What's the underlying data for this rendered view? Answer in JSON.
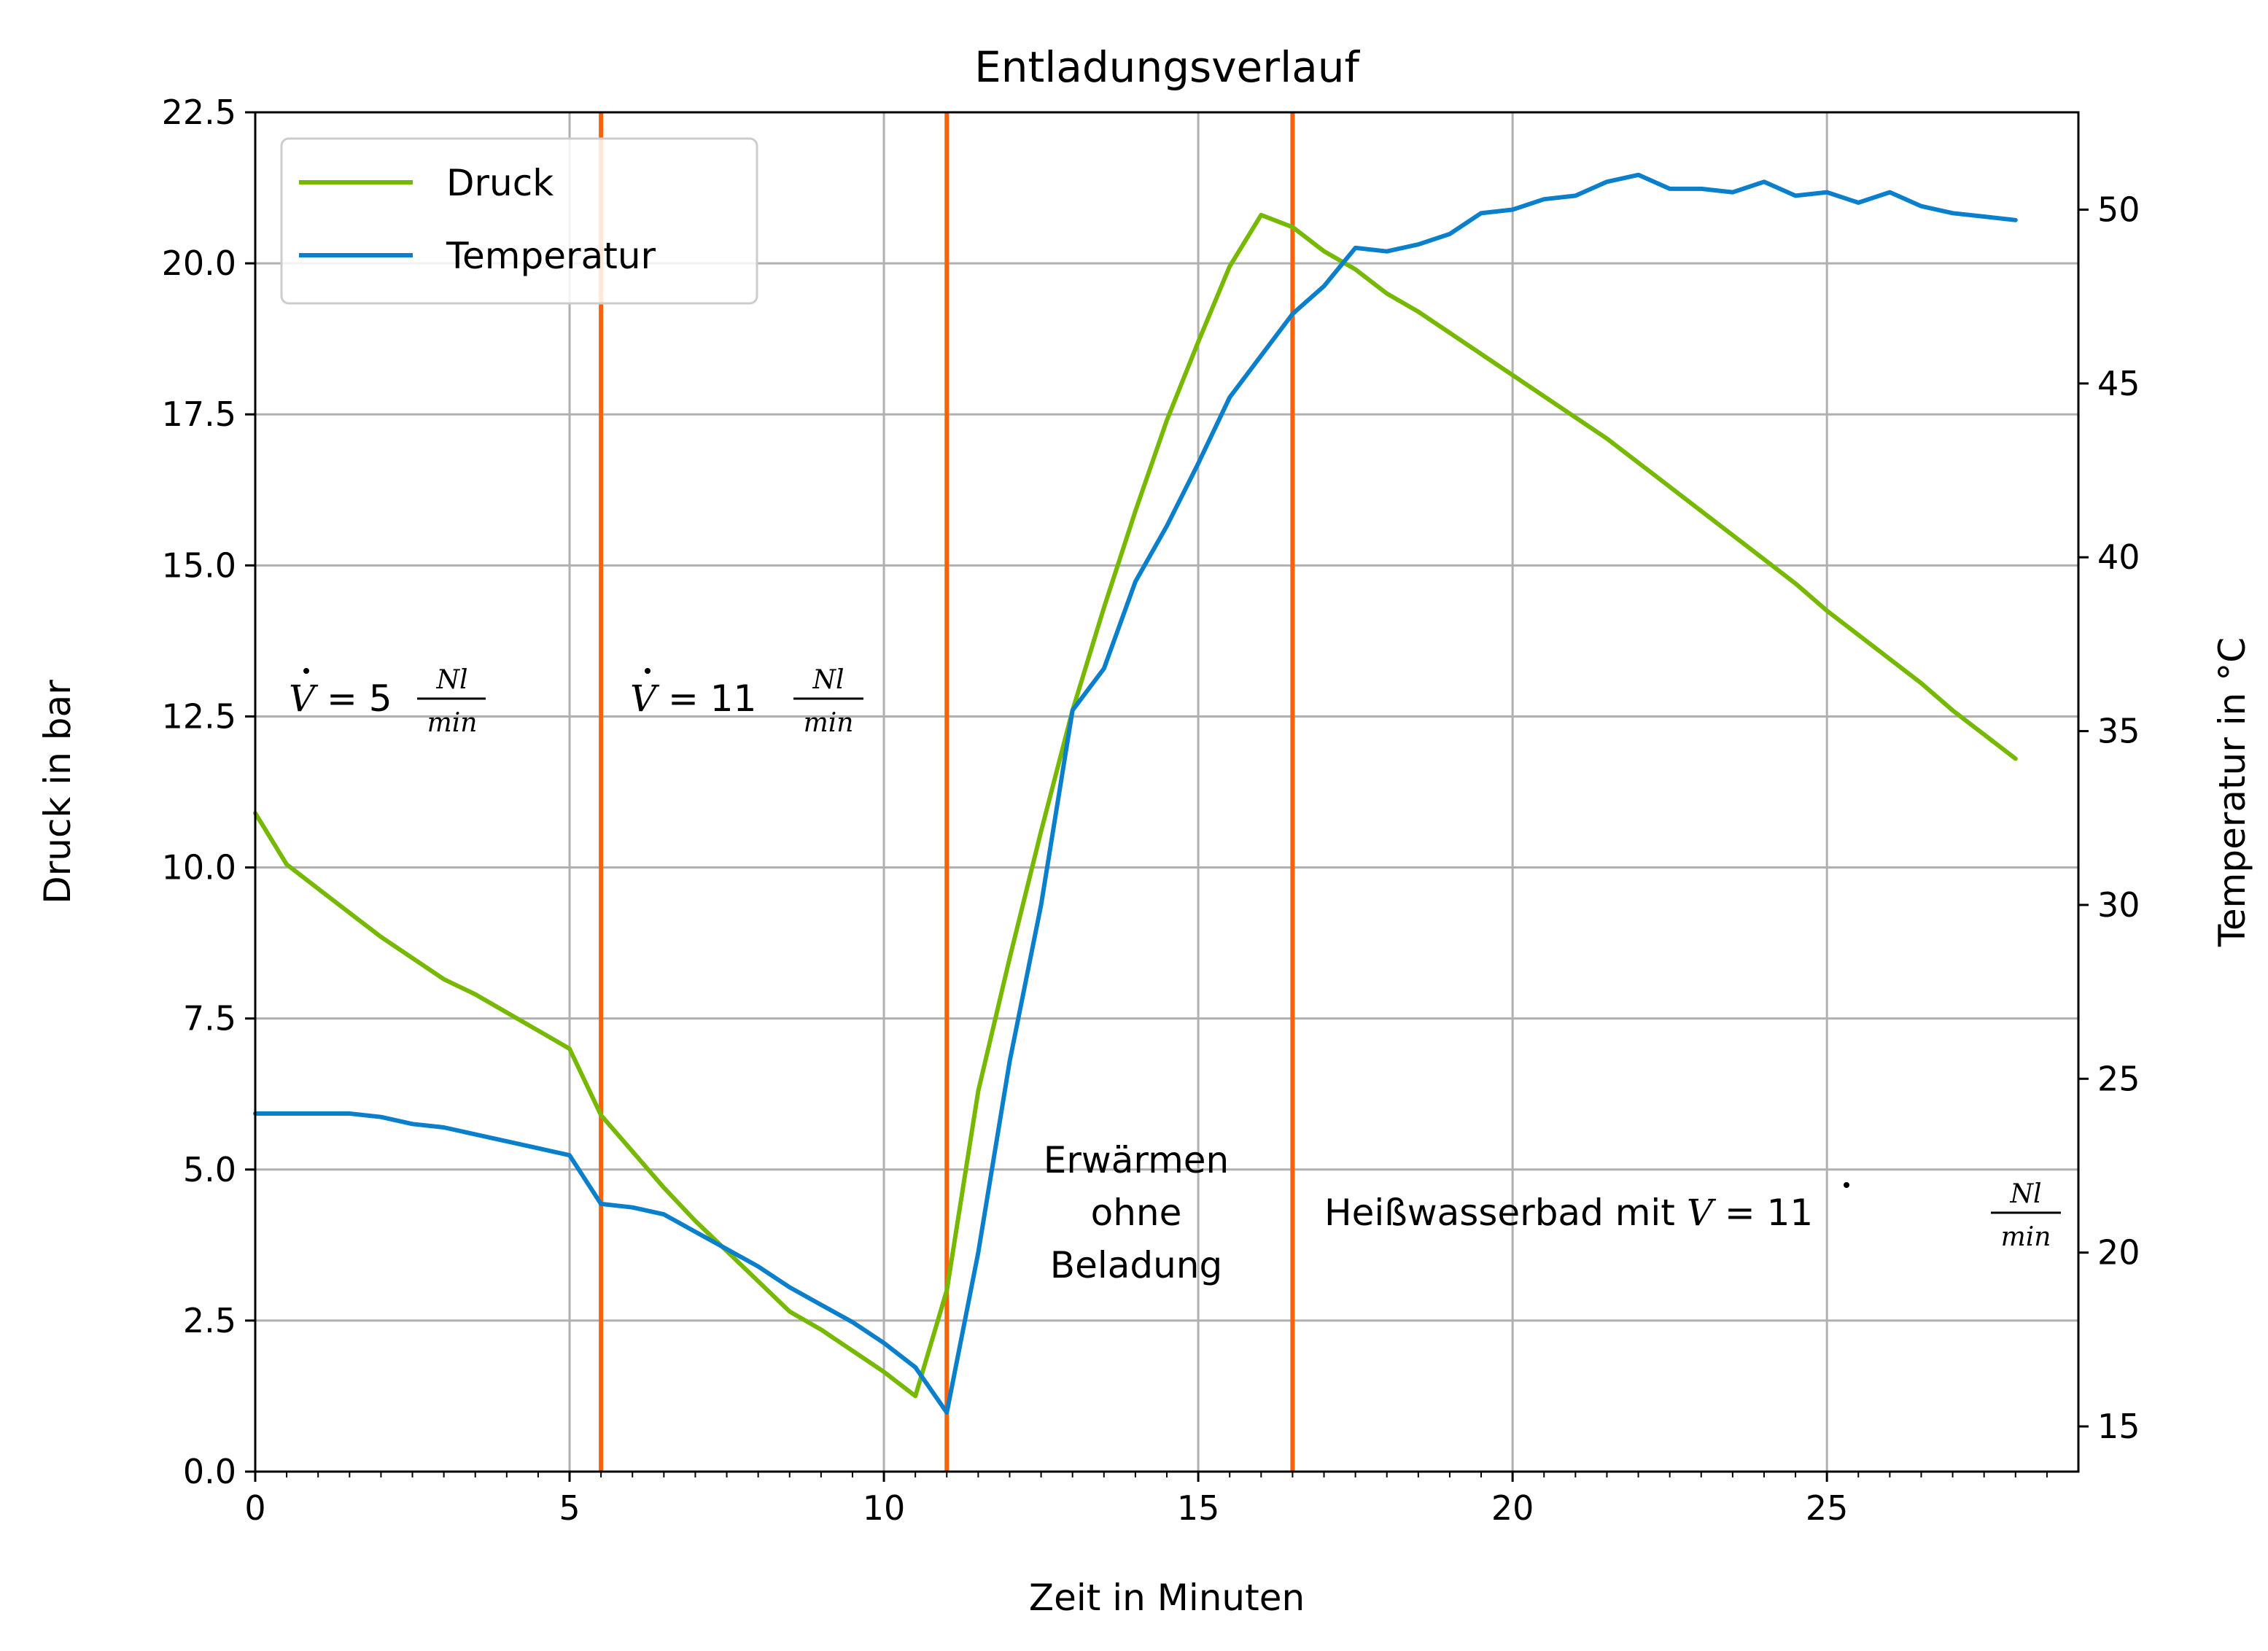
{
  "chart_data": {
    "type": "line",
    "title": "Entladungsverlauf",
    "xlabel": "Zeit in Minuten",
    "ylabel": "Druck in bar",
    "y2label": "Temperatur in °C",
    "xlim": [
      0,
      29
    ],
    "ylim": [
      0,
      22.5
    ],
    "y2lim": [
      13.7,
      52.8
    ],
    "x_ticks": [
      0,
      5,
      10,
      15,
      20,
      25
    ],
    "x_tick_labels": [
      "0",
      "5",
      "10",
      "15",
      "20",
      "25"
    ],
    "y_ticks": [
      0,
      2.5,
      5,
      7.5,
      10,
      12.5,
      15,
      17.5,
      20,
      22.5
    ],
    "y_tick_labels": [
      "0.0",
      "2.5",
      "5.0",
      "7.5",
      "10.0",
      "12.5",
      "15.0",
      "17.5",
      "20.0",
      "22.5"
    ],
    "y2_ticks": [
      15,
      20,
      25,
      30,
      35,
      40,
      45,
      50
    ],
    "y2_tick_labels": [
      "15",
      "20",
      "25",
      "30",
      "35",
      "40",
      "45",
      "50"
    ],
    "grid": true,
    "legend": {
      "position": "top-left",
      "entries": [
        "Druck",
        "Temperatur"
      ]
    },
    "series": [
      {
        "name": "Druck",
        "axis": "left",
        "color": "#77b800",
        "x": [
          0,
          0.5,
          1,
          1.5,
          2,
          2.5,
          3,
          3.5,
          4,
          4.5,
          5,
          5.5,
          6,
          6.5,
          7,
          7.5,
          8,
          8.5,
          9,
          9.5,
          10,
          10.5,
          11,
          11.5,
          12,
          12.5,
          13,
          13.5,
          14,
          14.5,
          15,
          15.5,
          16,
          16.5,
          17,
          17.5,
          18,
          18.5,
          19,
          19.5,
          20,
          20.5,
          21,
          21.5,
          22,
          22.5,
          23,
          23.5,
          24,
          24.5,
          25,
          25.5,
          26,
          26.5,
          27,
          27.5,
          28
        ],
        "values": [
          10.9,
          10.05,
          9.65,
          9.25,
          8.85,
          8.5,
          8.15,
          7.9,
          7.6,
          7.3,
          7.0,
          5.9,
          5.3,
          4.7,
          4.15,
          3.65,
          3.15,
          2.65,
          2.35,
          2.0,
          1.65,
          1.25,
          3.0,
          6.3,
          8.5,
          10.6,
          12.6,
          14.3,
          15.9,
          17.4,
          18.7,
          19.95,
          20.8,
          20.6,
          20.2,
          19.9,
          19.5,
          19.2,
          18.85,
          18.5,
          18.15,
          17.8,
          17.45,
          17.1,
          16.7,
          16.3,
          15.9,
          15.5,
          15.1,
          14.7,
          14.25,
          13.85,
          13.45,
          13.05,
          12.6,
          12.2,
          11.8
        ]
      },
      {
        "name": "Temperatur",
        "axis": "right",
        "color": "#0a7fcc",
        "x": [
          0,
          0.5,
          1,
          1.5,
          2,
          2.5,
          3,
          3.5,
          4,
          4.5,
          5,
          5.5,
          6,
          6.5,
          7,
          7.5,
          8,
          8.5,
          9,
          9.5,
          10,
          10.5,
          11,
          11.5,
          12,
          12.5,
          13,
          13.5,
          14,
          14.5,
          15,
          15.5,
          16,
          16.5,
          17,
          17.5,
          18,
          18.5,
          19,
          19.5,
          20,
          20.5,
          21,
          21.5,
          22,
          22.5,
          23,
          23.5,
          24,
          24.5,
          25,
          25.5,
          26,
          26.5,
          27,
          27.5,
          28
        ],
        "values": [
          24.0,
          24.0,
          24.0,
          24.0,
          23.9,
          23.7,
          23.6,
          23.4,
          23.2,
          23.0,
          22.8,
          21.4,
          21.3,
          21.1,
          20.6,
          20.1,
          19.6,
          19.0,
          18.5,
          18.0,
          17.4,
          16.7,
          15.4,
          20.0,
          25.5,
          30.0,
          35.6,
          36.8,
          39.3,
          40.9,
          42.7,
          44.6,
          45.8,
          47.0,
          47.8,
          48.9,
          48.8,
          49.0,
          49.3,
          49.9,
          50.0,
          50.3,
          50.4,
          50.8,
          51.0,
          50.6,
          50.6,
          50.5,
          50.8,
          50.4,
          50.5,
          50.2,
          50.5,
          50.1,
          49.9,
          49.8,
          49.7
        ]
      }
    ],
    "vertical_lines": {
      "color": "#f7630c",
      "x": [
        5.5,
        11,
        16.5
      ]
    },
    "annotations": [
      {
        "lhs": "V",
        "rel": " = ",
        "num": "5",
        "frac_top": "Nl",
        "frac_bottom": "min",
        "prefix": ""
      },
      {
        "lhs": "V",
        "rel": " = ",
        "num": "11",
        "frac_top": "Nl",
        "frac_bottom": "min",
        "prefix": ""
      },
      {
        "lines": [
          "Erwärmen",
          "ohne",
          "Beladung"
        ]
      },
      {
        "prefix": "Heißwasserbad mit ",
        "lhs": "V",
        "rel": " = ",
        "num": "11",
        "frac_top": "Nl",
        "frac_bottom": "min"
      }
    ]
  }
}
